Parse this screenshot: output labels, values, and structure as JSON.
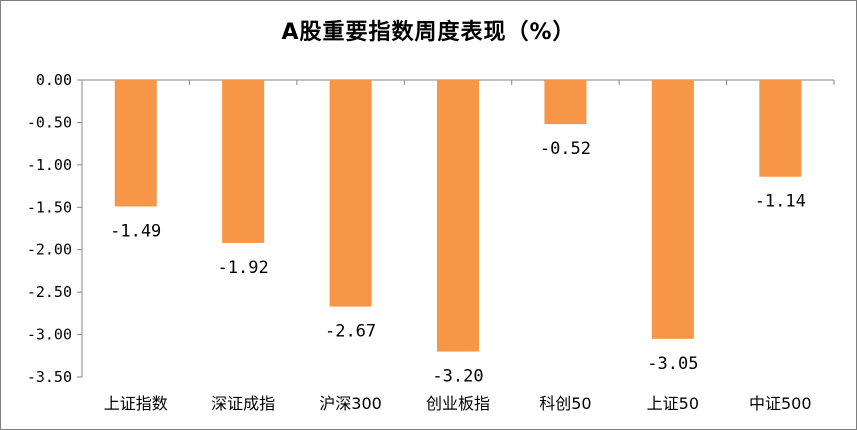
{
  "chart_data": {
    "type": "bar",
    "title": "A股重要指数周度表现（%）",
    "categories": [
      "上证指数",
      "深证成指",
      "沪深300",
      "创业板指",
      "科创50",
      "上证50",
      "中证500"
    ],
    "values": [
      -1.49,
      -1.92,
      -2.67,
      -3.2,
      -0.52,
      -3.05,
      -1.14
    ],
    "data_labels": [
      "-1.49",
      "-1.92",
      "-2.67",
      "-3.20",
      "-0.52",
      "-3.05",
      "-1.14"
    ],
    "yticks": [
      "0.00",
      "-0.50",
      "-1.00",
      "-1.50",
      "-2.00",
      "-2.50",
      "-3.00",
      "-3.50"
    ],
    "ylim": [
      -3.5,
      0
    ],
    "grid": false,
    "legend": "none",
    "bar_color": "#F79646"
  }
}
